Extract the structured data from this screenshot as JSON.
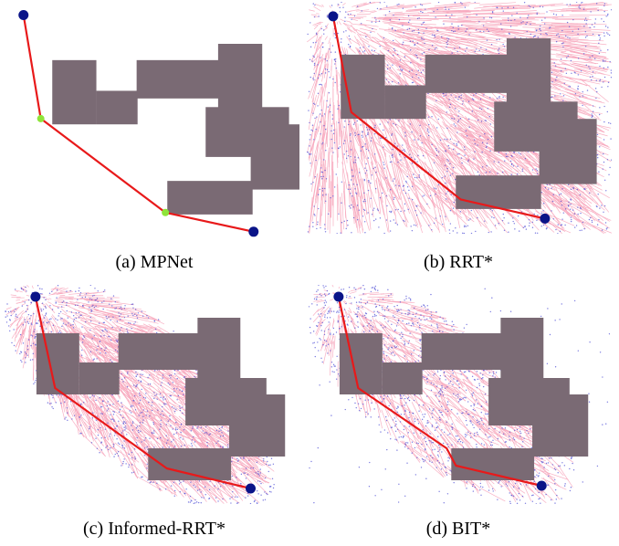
{
  "colors": {
    "obstacle": "#7a6a74",
    "path": "#e8191a",
    "tree_edge": "#f7a9be",
    "sample": "#4f4fd6",
    "endpoint": "#0a1488",
    "waypoint": "#8ee43a"
  },
  "panels": [
    {
      "id": "a",
      "caption": "(a) MPNet"
    },
    {
      "id": "b",
      "caption": "(b) RRT*"
    },
    {
      "id": "c",
      "caption": "(c) Informed-RRT*"
    },
    {
      "id": "d",
      "caption": "(d) BIT*"
    }
  ]
}
